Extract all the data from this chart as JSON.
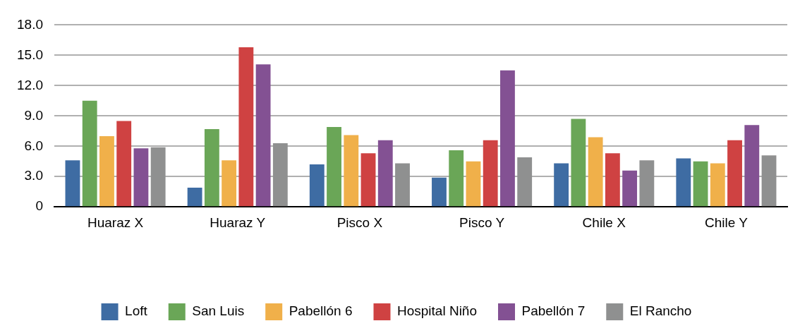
{
  "chart_data": {
    "type": "bar",
    "categories": [
      "Huaraz X",
      "Huaraz Y",
      "Pisco X",
      "Pisco Y",
      "Chile X",
      "Chile Y"
    ],
    "series": [
      {
        "name": "Loft",
        "color": "#3e6ca3",
        "values": [
          4.6,
          1.9,
          4.2,
          2.9,
          4.3,
          4.8
        ]
      },
      {
        "name": "San Luis",
        "color": "#6aa657",
        "values": [
          10.5,
          7.7,
          7.9,
          5.6,
          8.7,
          4.5
        ]
      },
      {
        "name": "Pabellón 6",
        "color": "#f0b04a",
        "values": [
          7.0,
          4.6,
          7.1,
          4.5,
          6.9,
          4.3
        ]
      },
      {
        "name": "Hospital Niño",
        "color": "#cf4242",
        "values": [
          8.5,
          15.8,
          5.3,
          6.6,
          5.3,
          6.6
        ]
      },
      {
        "name": "Pabellón 7",
        "color": "#835193",
        "values": [
          5.8,
          14.1,
          6.6,
          13.5,
          3.6,
          8.1
        ]
      },
      {
        "name": "El Rancho",
        "color": "#8f9090",
        "values": [
          5.9,
          6.3,
          4.3,
          4.9,
          4.6,
          5.1
        ]
      }
    ],
    "ylim": [
      0,
      18
    ],
    "yticks": [
      0,
      {
        "value": 3,
        "label": "3.0"
      },
      {
        "value": 6,
        "label": "6.0"
      },
      {
        "value": 9,
        "label": "9.0"
      },
      {
        "value": 12,
        "label": "12.0"
      },
      {
        "value": 15,
        "label": "15.0"
      },
      {
        "value": 18,
        "label": "18.0"
      }
    ],
    "grid": "y",
    "legend": "bottom"
  }
}
